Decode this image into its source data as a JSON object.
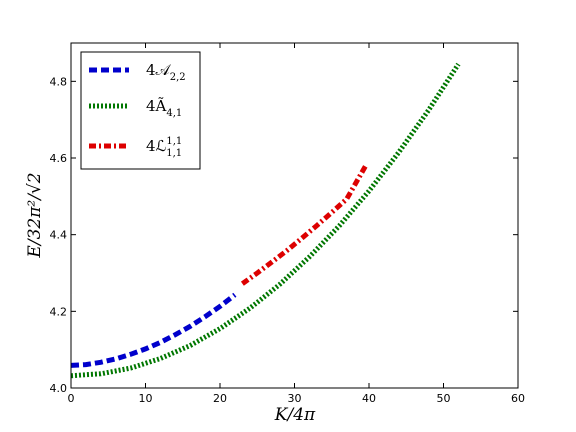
{
  "chart_data": {
    "type": "line",
    "xlabel": "K/4π",
    "ylabel": "E/32π²/√2",
    "xlim": [
      0,
      60
    ],
    "ylim": [
      4.0,
      4.9
    ],
    "xticks": [
      "0",
      "10",
      "20",
      "30",
      "40",
      "50",
      "60"
    ],
    "yticks": [
      "4.0",
      "4.2",
      "4.4",
      "4.6",
      "4.8"
    ],
    "grid": false,
    "legend_placement": "top-left",
    "series": [
      {
        "name": "4𝒜₂,₂",
        "color": "#0000cc",
        "style": "dashed",
        "x": [
          0,
          2,
          4,
          6,
          8,
          10,
          12,
          14,
          16,
          18,
          20,
          22
        ],
        "y": [
          4.059,
          4.061,
          4.067,
          4.076,
          4.088,
          4.102,
          4.119,
          4.139,
          4.161,
          4.186,
          4.213,
          4.243
        ]
      },
      {
        "name": "4Ã₄,₁",
        "color": "#007700",
        "style": "dotted",
        "x": [
          0,
          4,
          8,
          12,
          16,
          20,
          24,
          28,
          32,
          36,
          40,
          44,
          48,
          52
        ],
        "y": [
          4.032,
          4.037,
          4.052,
          4.077,
          4.111,
          4.155,
          4.208,
          4.27,
          4.342,
          4.423,
          4.514,
          4.615,
          4.725,
          4.845
        ]
      },
      {
        "name": "4ℒ₁,₁¹'¹",
        "color": "#dd0000",
        "style": "dashdot",
        "x": [
          23,
          25,
          27,
          29,
          31,
          33,
          35,
          37,
          39.5
        ],
        "y": [
          4.272,
          4.3,
          4.329,
          4.359,
          4.391,
          4.424,
          4.458,
          4.493,
          4.578
        ]
      }
    ],
    "legend": [
      {
        "main": "4𝒜",
        "sub": "2,2",
        "sup": ""
      },
      {
        "main": "4Ã",
        "sub": "4,1",
        "sup": ""
      },
      {
        "main": "4ℒ",
        "sub": "1,1",
        "sup": "1,1"
      }
    ]
  }
}
